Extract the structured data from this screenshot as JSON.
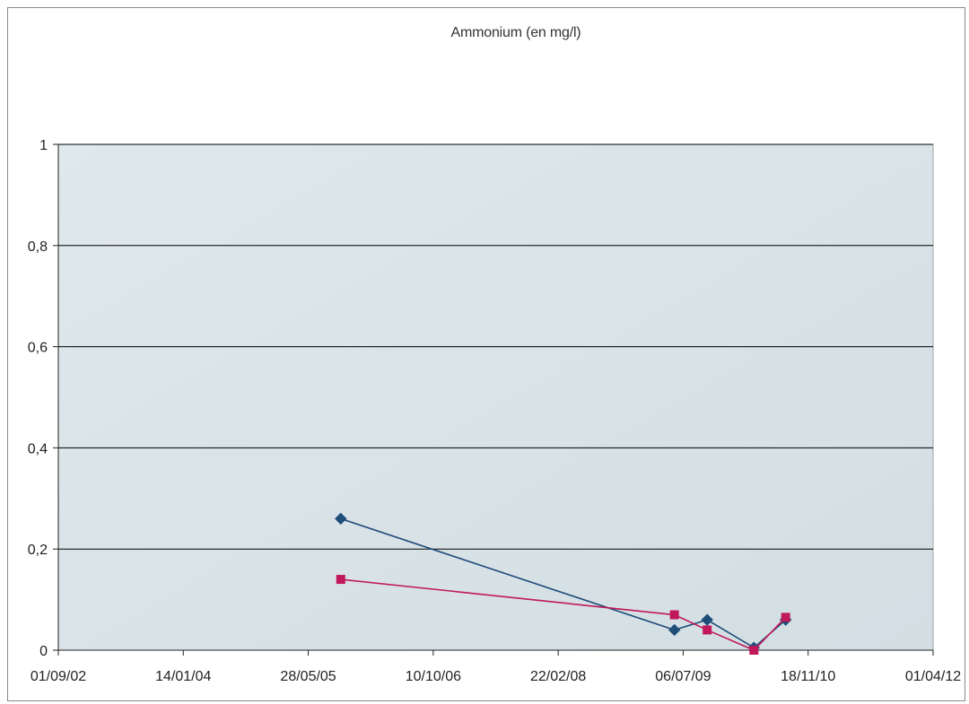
{
  "chart_data": {
    "type": "line",
    "title": "Ammonium (en mg/l)",
    "xlabel": "",
    "ylabel": "",
    "x_ticks": [
      "01/09/02",
      "14/01/04",
      "28/05/05",
      "10/10/06",
      "22/02/08",
      "06/07/09",
      "18/11/10",
      "01/04/12"
    ],
    "y_ticks": [
      "0",
      "0,2",
      "0,4",
      "0,6",
      "0,8",
      "1"
    ],
    "ylim": [
      0,
      1
    ],
    "xlim": [
      "2002-09-01",
      "2012-04-01"
    ],
    "grid": true,
    "series": [
      {
        "color": "#1f4e79",
        "marker": "diamond",
        "points": [
          {
            "x": "2005-10-05",
            "y": 0.26
          },
          {
            "x": "2009-06-01",
            "y": 0.04
          },
          {
            "x": "2009-10-10",
            "y": 0.06
          },
          {
            "x": "2010-04-15",
            "y": 0.005
          },
          {
            "x": "2010-08-20",
            "y": 0.06
          }
        ]
      },
      {
        "color": "#c0185a",
        "marker": "square",
        "points": [
          {
            "x": "2005-10-05",
            "y": 0.14
          },
          {
            "x": "2009-06-01",
            "y": 0.07
          },
          {
            "x": "2009-10-10",
            "y": 0.04
          },
          {
            "x": "2010-04-15",
            "y": 0.0
          },
          {
            "x": "2010-08-20",
            "y": 0.065
          }
        ]
      }
    ]
  }
}
